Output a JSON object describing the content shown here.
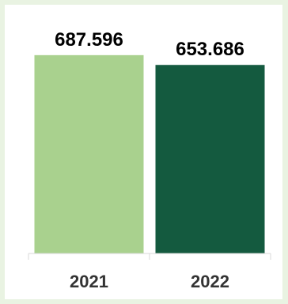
{
  "chart_data": {
    "type": "bar",
    "categories": [
      "2021",
      "2022"
    ],
    "values": [
      687596,
      653686
    ],
    "value_labels": [
      "687.596",
      "653.686"
    ],
    "title": "",
    "xlabel": "",
    "ylabel": "",
    "ylim": [
      0,
      720000
    ],
    "grid": false,
    "legend": "none",
    "colors": [
      "#a9d18e",
      "#145a3f"
    ]
  },
  "colors": {
    "page_background": "#e9f3e2",
    "panel_background": "#ffffff",
    "axis": "#d9d9d9"
  }
}
